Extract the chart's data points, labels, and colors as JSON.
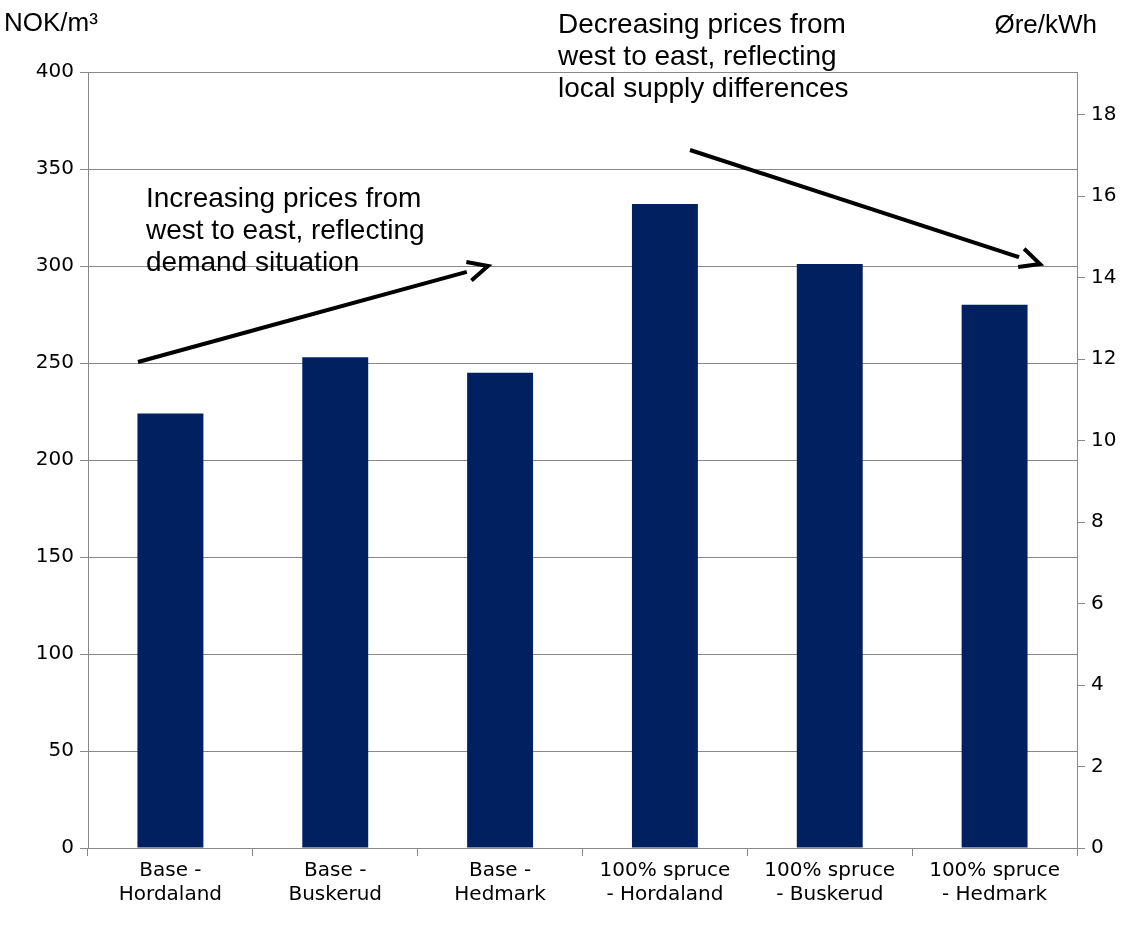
{
  "chart_data": {
    "type": "bar",
    "ylabel": "NOK/m³",
    "y2label": "Øre/kWh",
    "categories": [
      "Base -\nHordaland",
      "Base -\nBuskerud",
      "Base -\nHedmark",
      "100% spruce\n- Hordaland",
      "100% spruce\n- Buskerud",
      "100% spruce\n- Hedmark"
    ],
    "values": [
      224,
      253,
      245,
      332,
      301,
      280
    ],
    "color": "#002060",
    "ylim": [
      0,
      400
    ],
    "yticks": [
      0,
      50,
      100,
      150,
      200,
      250,
      300,
      350,
      400
    ],
    "y2lim": [
      0,
      19.05
    ],
    "y2ticks": [
      0,
      2,
      4,
      6,
      8,
      10,
      12,
      14,
      16,
      18
    ],
    "grid": "y",
    "annotations": [
      "Increasing prices from\nwest to east, reflecting\ndemand situation",
      "Decreasing prices from\nwest to east, reflecting\nlocal supply differences"
    ]
  }
}
